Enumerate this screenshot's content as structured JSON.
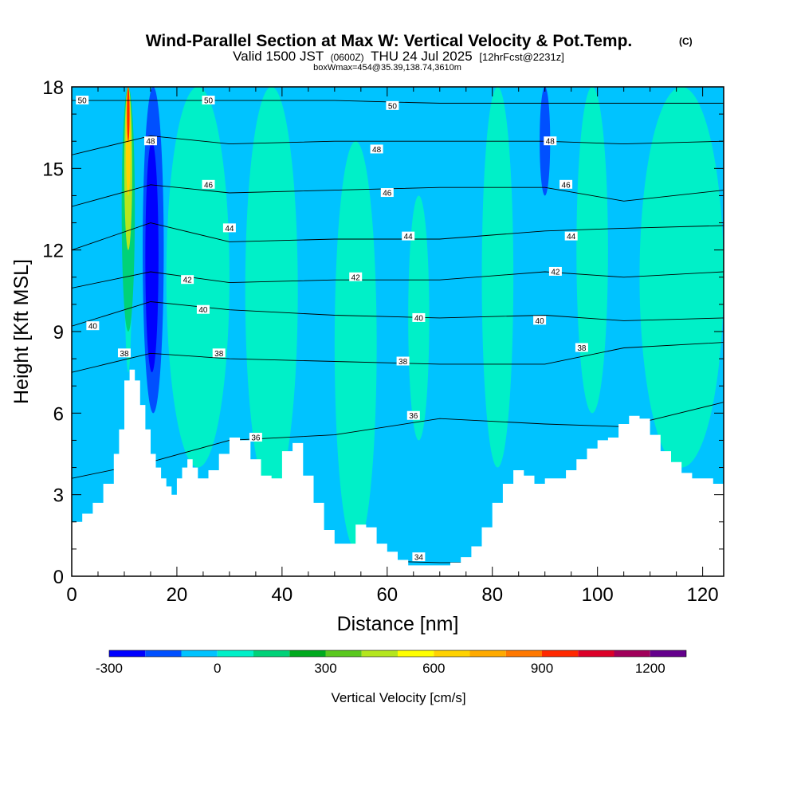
{
  "header": {
    "title": "Wind-Parallel Section at Max W: Vertical Velocity & Pot.Temp.",
    "title_mark": "(C)",
    "valid_prefix": "Valid 1500 JST",
    "valid_utc": "(0600Z)",
    "valid_date": "THU 24 Jul 2025",
    "forecast_info": "[12hrFcst@2231z]",
    "box_info": "boxWmax=454@35.39,138.74,3610m"
  },
  "chart_data": {
    "type": "heatmap",
    "xlabel": "Distance [nm]",
    "ylabel": "Height [Kft MSL]",
    "xlim": [
      0,
      124
    ],
    "ylim": [
      0,
      18
    ],
    "x_ticks": [
      0,
      20,
      40,
      60,
      80,
      100,
      120
    ],
    "y_ticks": [
      0,
      3,
      6,
      9,
      12,
      15,
      18
    ],
    "colorbar": {
      "label": "Vertical Velocity [cm/s]",
      "range": [
        -300,
        1300
      ],
      "ticks": [
        -300,
        0,
        300,
        600,
        900,
        1200
      ],
      "bins": [
        {
          "from": -300,
          "to": -200,
          "color": "#0000ff"
        },
        {
          "from": -200,
          "to": -100,
          "color": "#0050ff"
        },
        {
          "from": -100,
          "to": 0,
          "color": "#00c3ff"
        },
        {
          "from": 0,
          "to": 100,
          "color": "#00f0c8"
        },
        {
          "from": 100,
          "to": 200,
          "color": "#00d278"
        },
        {
          "from": 200,
          "to": 300,
          "color": "#00aa1e"
        },
        {
          "from": 300,
          "to": 400,
          "color": "#5ac81e"
        },
        {
          "from": 400,
          "to": 500,
          "color": "#b4e61e"
        },
        {
          "from": 500,
          "to": 600,
          "color": "#ffff00"
        },
        {
          "from": 600,
          "to": 700,
          "color": "#ffd200"
        },
        {
          "from": 700,
          "to": 800,
          "color": "#ffaa00"
        },
        {
          "from": 800,
          "to": 900,
          "color": "#ff7800"
        },
        {
          "from": 900,
          "to": 1000,
          "color": "#ff2800"
        },
        {
          "from": 1000,
          "to": 1100,
          "color": "#dc0028"
        },
        {
          "from": 1100,
          "to": 1200,
          "color": "#a0005a"
        },
        {
          "from": 1200,
          "to": 1300,
          "color": "#64008c"
        }
      ]
    },
    "terrain_profile": {
      "x": [
        0,
        2,
        4,
        6,
        8,
        9,
        10,
        11,
        12,
        13,
        14,
        15,
        16,
        17,
        18,
        19,
        20,
        21,
        22,
        23,
        24,
        26,
        28,
        30,
        32,
        34,
        36,
        38,
        40,
        42,
        44,
        46,
        48,
        50,
        52,
        54,
        56,
        58,
        60,
        62,
        64,
        66,
        68,
        70,
        72,
        74,
        76,
        78,
        80,
        82,
        84,
        86,
        88,
        90,
        92,
        94,
        96,
        98,
        100,
        102,
        104,
        106,
        108,
        110,
        112,
        114,
        116,
        118,
        120,
        122,
        124
      ],
      "y": [
        2.0,
        2.3,
        2.7,
        3.4,
        4.5,
        5.4,
        7.2,
        7.6,
        7.2,
        6.3,
        5.4,
        4.5,
        4.0,
        3.6,
        3.3,
        3.0,
        3.6,
        4.0,
        4.3,
        4.0,
        3.6,
        3.9,
        4.5,
        5.1,
        5.0,
        4.3,
        3.7,
        3.6,
        4.6,
        4.9,
        3.7,
        2.7,
        1.7,
        1.2,
        1.2,
        1.9,
        1.8,
        1.2,
        0.9,
        0.6,
        0.4,
        0.4,
        0.4,
        0.4,
        0.5,
        0.7,
        1.1,
        1.8,
        2.7,
        3.4,
        3.9,
        3.7,
        3.4,
        3.6,
        3.6,
        3.9,
        4.3,
        4.7,
        5.0,
        5.1,
        5.6,
        5.9,
        5.8,
        5.2,
        4.6,
        4.2,
        3.8,
        3.6,
        3.6,
        3.4,
        3.3
      ]
    },
    "isentropes": {
      "units": "K (labels show last two digits of potential temperature, e.g. 40 = 340 K)",
      "levels": [
        {
          "value": 34,
          "label": "34",
          "h": [
            0.6,
            0.6,
            0.6,
            0.6,
            0.5,
            0.5,
            0.5,
            0.5
          ]
        },
        {
          "value": 36,
          "label": "36",
          "h": [
            3.6,
            4.2,
            5.0,
            5.2,
            5.8,
            5.6,
            5.5,
            6.4
          ]
        },
        {
          "value": 38,
          "label": "38",
          "h": [
            7.5,
            8.2,
            8.0,
            7.9,
            7.8,
            7.8,
            8.4,
            8.6
          ]
        },
        {
          "value": 40,
          "label": "40",
          "h": [
            9.2,
            10.1,
            9.8,
            9.6,
            9.5,
            9.6,
            9.4,
            9.5
          ]
        },
        {
          "value": 42,
          "label": "42",
          "h": [
            10.6,
            11.2,
            10.8,
            10.9,
            10.9,
            11.2,
            11.0,
            11.2
          ]
        },
        {
          "value": 44,
          "label": "44",
          "h": [
            12.0,
            13.0,
            12.3,
            12.4,
            12.4,
            12.7,
            12.8,
            12.9
          ]
        },
        {
          "value": 46,
          "label": "46",
          "h": [
            13.6,
            14.4,
            14.1,
            14.2,
            14.3,
            14.3,
            13.8,
            14.2
          ]
        },
        {
          "value": 48,
          "label": "48",
          "h": [
            15.5,
            16.2,
            15.9,
            16.0,
            16.0,
            16.0,
            15.9,
            16.0
          ]
        },
        {
          "value": 50,
          "label": "50",
          "h": [
            17.5,
            17.5,
            17.5,
            17.5,
            17.4,
            17.4,
            17.4,
            17.4
          ]
        }
      ],
      "x": [
        0,
        15,
        30,
        50,
        70,
        90,
        105,
        124
      ]
    },
    "contour_labels": [
      {
        "text": "50",
        "x": 2,
        "y": 17.5
      },
      {
        "text": "50",
        "x": 26,
        "y": 17.5
      },
      {
        "text": "50",
        "x": 61,
        "y": 17.3
      },
      {
        "text": "48",
        "x": 15,
        "y": 16.0
      },
      {
        "text": "48",
        "x": 58,
        "y": 15.7
      },
      {
        "text": "48",
        "x": 91,
        "y": 16.0
      },
      {
        "text": "46",
        "x": 26,
        "y": 14.4
      },
      {
        "text": "46",
        "x": 60,
        "y": 14.1
      },
      {
        "text": "46",
        "x": 94,
        "y": 14.4
      },
      {
        "text": "44",
        "x": 30,
        "y": 12.8
      },
      {
        "text": "44",
        "x": 64,
        "y": 12.5
      },
      {
        "text": "44",
        "x": 95,
        "y": 12.5
      },
      {
        "text": "42",
        "x": 22,
        "y": 10.9
      },
      {
        "text": "42",
        "x": 54,
        "y": 11.0
      },
      {
        "text": "42",
        "x": 92,
        "y": 11.2
      },
      {
        "text": "40",
        "x": 4,
        "y": 9.2
      },
      {
        "text": "40",
        "x": 25,
        "y": 9.8
      },
      {
        "text": "40",
        "x": 66,
        "y": 9.5
      },
      {
        "text": "40",
        "x": 89,
        "y": 9.4
      },
      {
        "text": "38",
        "x": 10,
        "y": 8.2
      },
      {
        "text": "38",
        "x": 28,
        "y": 8.2
      },
      {
        "text": "38",
        "x": 63,
        "y": 7.9
      },
      {
        "text": "38",
        "x": 97,
        "y": 8.4
      },
      {
        "text": "36",
        "x": 35,
        "y": 5.1
      },
      {
        "text": "36",
        "x": 65,
        "y": 5.9
      },
      {
        "text": "34",
        "x": 66,
        "y": 0.7
      }
    ],
    "w_regions": [
      {
        "name": "",
        "w": -50,
        "x0": 0,
        "x1": 124,
        "y0": 0,
        "y1": 18
      },
      {
        "name": "",
        "w": 50,
        "x0": 18,
        "x1": 30,
        "y0": 4,
        "y1": 18
      },
      {
        "name": "",
        "w": 50,
        "x0": 33,
        "x1": 43,
        "y0": 3,
        "y1": 18
      },
      {
        "name": "",
        "w": 50,
        "x0": 50,
        "x1": 58,
        "y0": 1,
        "y1": 16
      },
      {
        "name": "",
        "w": 50,
        "x0": 64,
        "x1": 68,
        "y0": 5,
        "y1": 14
      },
      {
        "name": "",
        "w": 50,
        "x0": 78,
        "x1": 84,
        "y0": 4,
        "y1": 18
      },
      {
        "name": "",
        "w": 50,
        "x0": 96,
        "x1": 102,
        "y0": 6,
        "y1": 18
      },
      {
        "name": "",
        "w": 50,
        "x0": 108,
        "x1": 124,
        "y0": 4,
        "y1": 18
      },
      {
        "name": "",
        "w": 50,
        "x0": 10,
        "x1": 11.5,
        "y0": 7.5,
        "y1": 18
      },
      {
        "name": "",
        "w": 150,
        "x0": 9.5,
        "x1": 12,
        "y0": 9,
        "y1": 18
      },
      {
        "name": "",
        "w": 450,
        "x0": 10,
        "x1": 11.5,
        "y0": 12,
        "y1": 18
      },
      {
        "name": "",
        "w": 650,
        "x0": 10.3,
        "x1": 11.2,
        "y0": 14,
        "y1": 18
      },
      {
        "name": "",
        "w": 950,
        "x0": 10.5,
        "x1": 11,
        "y0": 16,
        "y1": 18
      },
      {
        "name": "",
        "w": -150,
        "x0": 13.5,
        "x1": 17.5,
        "y0": 6,
        "y1": 18
      },
      {
        "name": "",
        "w": -250,
        "x0": 14,
        "x1": 16.5,
        "y0": 7.5,
        "y1": 16
      },
      {
        "name": "",
        "w": -150,
        "x0": 89,
        "x1": 91,
        "y0": 14,
        "y1": 18
      }
    ]
  }
}
